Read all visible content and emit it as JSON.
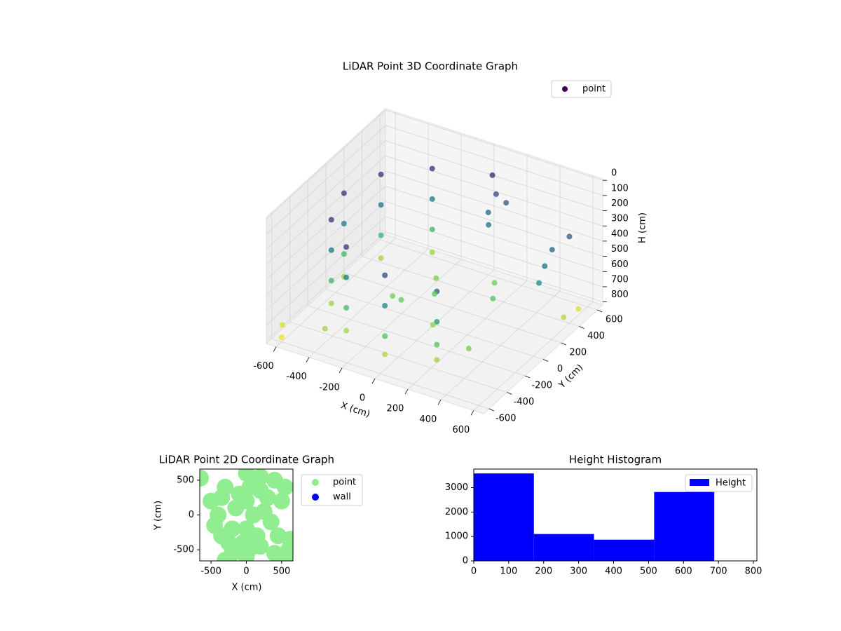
{
  "chart_data": [
    {
      "type": "scatter3d",
      "title": "LiDAR Point 3D Coordinate Graph",
      "xlabel": "X (cm)",
      "ylabel": "Y (cm)",
      "zlabel": "H (cm)",
      "xlim": [
        -660,
        660
      ],
      "ylim": [
        -660,
        660
      ],
      "zlim": [
        820,
        -10
      ],
      "xticks": [
        -600,
        -400,
        -200,
        0,
        200,
        400,
        600
      ],
      "yticks": [
        -600,
        -400,
        -200,
        0,
        200,
        400,
        600
      ],
      "zticks": [
        0,
        100,
        200,
        300,
        400,
        500,
        600,
        700,
        800
      ],
      "colormap": [
        "#440154",
        "#3b528b",
        "#21918c",
        "#5ec962",
        "#fde725"
      ],
      "legend": "upper right",
      "series": [
        {
          "name": "point",
          "color": "#440154",
          "x": [
            -275,
            -275,
            -275,
            -275,
            -476,
            -476,
            -476,
            -476,
            -550,
            -550,
            -550,
            -550,
            -476,
            -476,
            -476,
            -476,
            -275,
            -275,
            -275,
            -275,
            0,
            0,
            0,
            0,
            275,
            275,
            275,
            275,
            50,
            100,
            150,
            80,
            120,
            550,
            560,
            580,
            600,
            -200,
            0,
            100,
            300,
            -100,
            200,
            -650,
            -600,
            600,
            620,
            400,
            -380,
            -120
          ],
          "y": [
            476,
            476,
            476,
            476,
            275,
            275,
            275,
            275,
            0,
            0,
            0,
            0,
            -275,
            -275,
            -275,
            -275,
            -476,
            -476,
            -476,
            -476,
            -550,
            -550,
            -550,
            -550,
            -476,
            -476,
            -476,
            -476,
            550,
            500,
            520,
            450,
            380,
            300,
            200,
            100,
            400,
            -100,
            0,
            -200,
            100,
            200,
            300,
            -500,
            -600,
            500,
            300,
            -350,
            -520,
            -150
          ],
          "z": [
            150,
            350,
            550,
            700,
            150,
            350,
            550,
            700,
            150,
            350,
            550,
            700,
            150,
            350,
            550,
            700,
            150,
            350,
            550,
            700,
            200,
            400,
            600,
            720,
            250,
            450,
            600,
            700,
            120,
            200,
            250,
            300,
            330,
            300,
            350,
            400,
            250,
            650,
            620,
            680,
            600,
            660,
            640,
            780,
            790,
            780,
            720,
            650,
            700,
            620
          ]
        }
      ]
    },
    {
      "type": "scatter",
      "title": "LiDAR Point 2D Coordinate Graph",
      "xlabel": "X (cm)",
      "ylabel": "Y (cm)",
      "xlim": [
        -660,
        660
      ],
      "ylim": [
        -660,
        660
      ],
      "xticks": [
        -500,
        0,
        500
      ],
      "yticks": [
        -500,
        0,
        500
      ],
      "legend": "outside right",
      "series": [
        {
          "name": "point",
          "color": "#90ee90",
          "x": [
            -650,
            -300,
            0,
            200,
            400,
            -400,
            -350,
            -200,
            0,
            200,
            400,
            550,
            600,
            620,
            500,
            550,
            100,
            -100,
            300,
            0,
            -200,
            150,
            -500,
            -300,
            -450,
            -150,
            250,
            50,
            -250,
            350,
            100,
            -50,
            200,
            -350,
            0,
            450
          ],
          "y": [
            530,
            400,
            600,
            550,
            500,
            0,
            -300,
            -550,
            -600,
            -450,
            -550,
            -650,
            -500,
            -350,
            200,
            400,
            0,
            300,
            250,
            -200,
            -200,
            -300,
            200,
            -650,
            -150,
            100,
            50,
            400,
            -400,
            -100,
            -450,
            -400,
            350,
            250,
            200,
            -300
          ]
        },
        {
          "name": "wall",
          "color": "#0000ff",
          "x": [],
          "y": []
        }
      ]
    },
    {
      "type": "histogram",
      "title": "Height Histogram",
      "name": "Height",
      "color": "#0000ff",
      "bins": [
        0,
        172,
        344,
        516,
        688
      ],
      "counts": [
        3580,
        1100,
        870,
        2820
      ],
      "xlim": [
        0,
        810
      ],
      "ylim": [
        0,
        3760
      ],
      "xticks": [
        0,
        100,
        200,
        300,
        400,
        500,
        600,
        700,
        800
      ],
      "yticks": [
        0,
        1000,
        2000,
        3000
      ],
      "legend": "upper right"
    }
  ]
}
